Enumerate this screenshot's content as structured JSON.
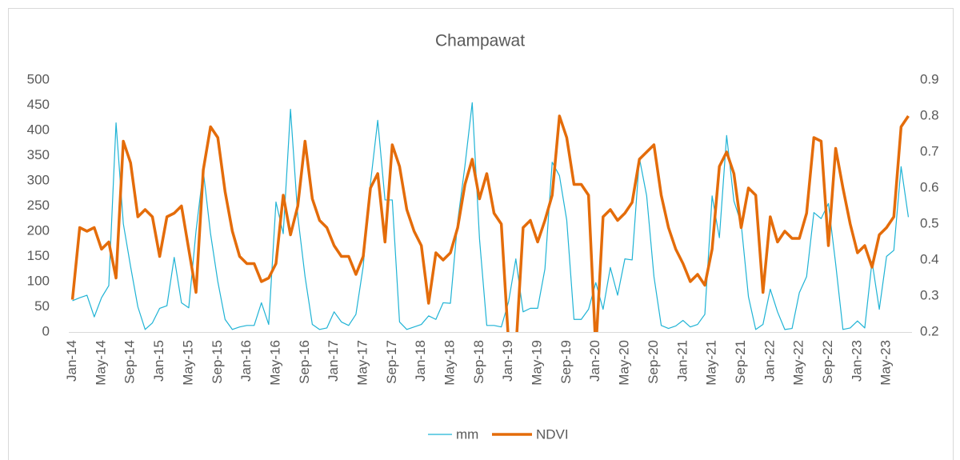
{
  "chart_data": {
    "type": "line",
    "title": "Champawat",
    "categories": [
      "Jan-14",
      null,
      null,
      null,
      "May-14",
      null,
      null,
      null,
      "Sep-14",
      null,
      null,
      null,
      "Jan-15",
      null,
      null,
      null,
      "May-15",
      null,
      null,
      null,
      "Sep-15",
      null,
      null,
      null,
      "Jan-16",
      null,
      null,
      null,
      "May-16",
      null,
      null,
      null,
      "Sep-16",
      null,
      null,
      null,
      "Jan-17",
      null,
      null,
      null,
      "May-17",
      null,
      null,
      null,
      "Sep-17",
      null,
      null,
      null,
      "Jan-18",
      null,
      null,
      null,
      "May-18",
      null,
      null,
      null,
      "Sep-18",
      null,
      null,
      null,
      "Jan-19",
      null,
      null,
      null,
      "May-19",
      null,
      null,
      null,
      "Sep-19",
      null,
      null,
      null,
      "Jan-20",
      null,
      null,
      null,
      "May-20",
      null,
      null,
      null,
      "Sep-20",
      null,
      null,
      null,
      "Jan-21",
      null,
      null,
      null,
      "May-21",
      null,
      null,
      null,
      "Sep-21",
      null,
      null,
      null,
      "Jan-22",
      null,
      null,
      null,
      "May-22",
      null,
      null,
      null,
      "Sep-22",
      null,
      null,
      null,
      "Jan-23",
      null,
      null,
      null,
      "May-23",
      null,
      null,
      null
    ],
    "series": [
      {
        "name": "mm",
        "color": "#1fb3d5",
        "axis": "y",
        "values": [
          62,
          68,
          73,
          30,
          68,
          92,
          415,
          215,
          130,
          50,
          5,
          18,
          47,
          52,
          148,
          58,
          48,
          200,
          320,
          195,
          100,
          25,
          5,
          10,
          13,
          13,
          58,
          15,
          258,
          195,
          442,
          230,
          110,
          15,
          5,
          8,
          40,
          20,
          13,
          35,
          130,
          295,
          420,
          262,
          262,
          20,
          5,
          10,
          15,
          32,
          25,
          58,
          57,
          220,
          330,
          455,
          185,
          13,
          13,
          10,
          60,
          145,
          40,
          47,
          47,
          125,
          337,
          310,
          222,
          25,
          25,
          45,
          98,
          45,
          128,
          73,
          145,
          143,
          345,
          270,
          110,
          13,
          7,
          12,
          23,
          10,
          15,
          35,
          270,
          187,
          390,
          260,
          215,
          70,
          5,
          15,
          85,
          40,
          5,
          7,
          78,
          110,
          237,
          225,
          255,
          135,
          5,
          8,
          22,
          8,
          140,
          45,
          150,
          162,
          328,
          228
        ]
      },
      {
        "name": "NDVI",
        "color": "#e46c0a",
        "axis": "y2",
        "values": [
          0.29,
          0.49,
          0.48,
          0.49,
          0.43,
          0.45,
          0.35,
          0.73,
          0.67,
          0.52,
          0.54,
          0.52,
          0.41,
          0.52,
          0.53,
          0.55,
          0.43,
          0.31,
          0.65,
          0.77,
          0.74,
          0.59,
          0.48,
          0.41,
          0.39,
          0.39,
          0.34,
          0.35,
          0.39,
          0.58,
          0.47,
          0.55,
          0.73,
          0.57,
          0.51,
          0.49,
          0.44,
          0.41,
          0.41,
          0.36,
          0.41,
          0.6,
          0.64,
          0.45,
          0.72,
          0.66,
          0.54,
          0.48,
          0.44,
          0.28,
          0.42,
          0.4,
          0.42,
          0.49,
          0.61,
          0.68,
          0.57,
          0.64,
          0.53,
          0.5,
          0.17,
          0.15,
          0.49,
          0.51,
          0.45,
          0.51,
          0.58,
          0.8,
          0.74,
          0.61,
          0.61,
          0.58,
          0.15,
          0.52,
          0.54,
          0.51,
          0.53,
          0.56,
          0.68,
          0.7,
          0.72,
          0.58,
          0.49,
          0.43,
          0.39,
          0.34,
          0.36,
          0.33,
          0.43,
          0.66,
          0.7,
          0.64,
          0.49,
          0.6,
          0.58,
          0.31,
          0.52,
          0.45,
          0.48,
          0.46,
          0.46,
          0.53,
          0.74,
          0.73,
          0.44,
          0.71,
          0.6,
          0.5,
          0.42,
          0.44,
          0.38,
          0.47,
          0.49,
          0.52,
          0.77,
          0.8
        ]
      }
    ],
    "ylim": [
      0,
      500
    ],
    "yticks": [
      0,
      50,
      100,
      150,
      200,
      250,
      300,
      350,
      400,
      450,
      500
    ],
    "y2lim": [
      0.2,
      0.9
    ],
    "y2ticks": [
      0.2,
      0.3,
      0.4,
      0.5,
      0.6,
      0.7,
      0.8,
      0.9
    ],
    "legend": "bottom"
  }
}
